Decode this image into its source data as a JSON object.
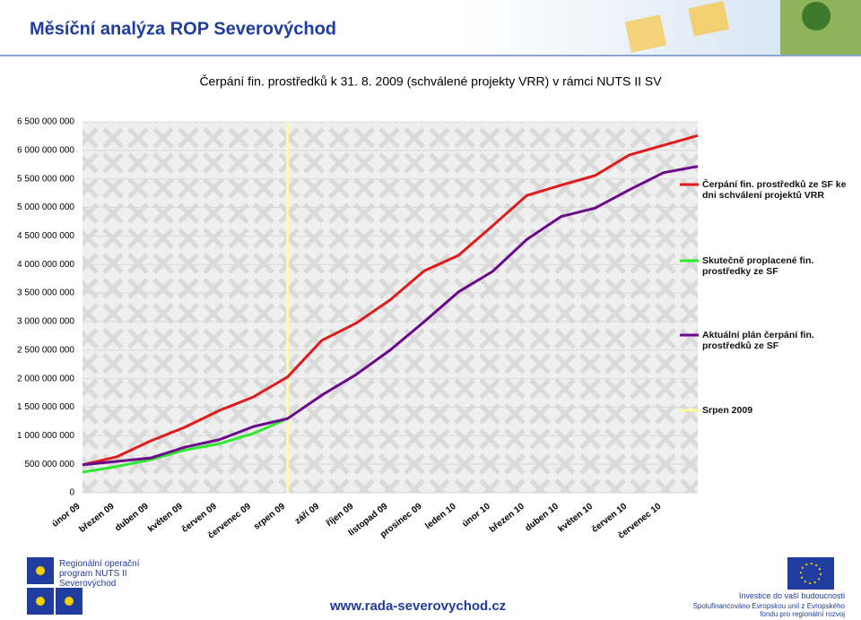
{
  "header": {
    "title": "Měsíční analýza ROP Severovýchod"
  },
  "chart_data": {
    "type": "line",
    "title": "Čerpání fin. prostředků k 31. 8. 2009 (schválené projekty VRR) v rámci NUTS II SV",
    "categories": [
      "únor 09",
      "březen 09",
      "duben 09",
      "květen 09",
      "červen 09",
      "červenec 09",
      "srpen 09",
      "září 09",
      "říjen 09",
      "listopad 09",
      "prosinec 09",
      "leden 10",
      "únor 10",
      "březen 10",
      "duben 10",
      "květen 10",
      "červen 10",
      "červenec 10",
      null
    ],
    "series": [
      {
        "name": "Čerpání fin. prostředků ze SF ke dni schválení projektů VRR",
        "color": "#e01b1b",
        "values": [
          490000000,
          630000000,
          910000000,
          1150000000,
          1440000000,
          1680000000,
          2030000000,
          2670000000,
          2970000000,
          3380000000,
          3890000000,
          4160000000,
          4680000000,
          5210000000,
          5390000000,
          5560000000,
          5920000000,
          6090000000,
          6260000000
        ]
      },
      {
        "name": "Skutečně proplacené fin. prostředky ze SF",
        "color": "#2ee82e",
        "values": [
          360000000,
          460000000,
          580000000,
          750000000,
          860000000,
          1040000000,
          1300000000,
          null,
          null,
          null,
          null,
          null,
          null,
          null,
          null,
          null,
          null,
          null,
          null
        ]
      },
      {
        "name": "Aktuální plán čerpání fin. prostředků ze SF",
        "color": "#6a0a8a",
        "values": [
          490000000,
          550000000,
          610000000,
          800000000,
          930000000,
          1160000000,
          1300000000,
          1710000000,
          2070000000,
          2500000000,
          3000000000,
          3520000000,
          3880000000,
          4440000000,
          4840000000,
          4990000000,
          5310000000,
          5610000000,
          5720000000
        ]
      }
    ],
    "marker": {
      "name": "Srpen 2009",
      "color": "#ffff99",
      "x": "srpen 09"
    },
    "ylim": [
      0,
      6500000000
    ],
    "yticks": [
      0,
      {
        "value": 500000000,
        "label": "500 000 000"
      },
      {
        "value": 1000000000,
        "label": "1 000 000 000"
      },
      {
        "value": 1500000000,
        "label": "1 500 000 000"
      },
      {
        "value": 2000000000,
        "label": "2 000 000 000"
      },
      {
        "value": 2500000000,
        "label": "2 500 000 000"
      },
      {
        "value": 3000000000,
        "label": "3 000 000 000"
      },
      {
        "value": 3500000000,
        "label": "3 500 000 000"
      },
      {
        "value": 4000000000,
        "label": "4 000 000 000"
      },
      {
        "value": 4500000000,
        "label": "4 500 000 000"
      },
      {
        "value": 5000000000,
        "label": "5 000 000 000"
      },
      {
        "value": 5500000000,
        "label": "5 500 000 000"
      },
      {
        "value": 6000000000,
        "label": "6 000 000 000"
      },
      {
        "value": 6500000000,
        "label": "6 500 000 000"
      }
    ],
    "grid": true,
    "legend": "right"
  },
  "footer": {
    "logo_left": "Regionální operační program NUTS II Severovýchod",
    "url": "www.rada-severovychod.cz",
    "slogan": "Investice do vaší budoucnosti",
    "funding": "Spolufinancováno Evropskou unií z Evropského fondu pro regionální rozvoj"
  }
}
